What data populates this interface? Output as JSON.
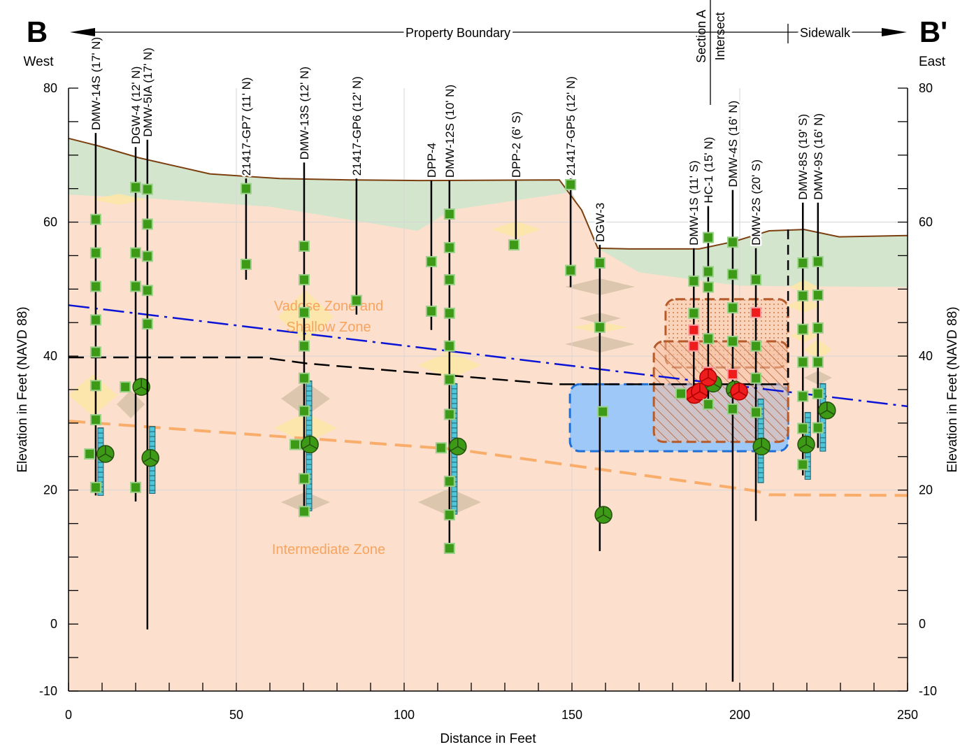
{
  "chart_data": {
    "type": "section",
    "header": {
      "left": "B",
      "right": "B'",
      "left_sub": "West",
      "right_sub": "East",
      "boundary": "Property Boundary",
      "section": [
        "Section A",
        "Intersect"
      ],
      "sidewalk": "Sidewalk"
    },
    "zones": [
      "Vadose Zone and",
      "Shallow Zone",
      "Intermediate Zone"
    ],
    "xlabel": "Distance in Feet",
    "ylabel": "Elevation in Feet (NAVD 88)",
    "y2label": "Elevation in Feet (NAVD 88)",
    "xlim": [
      0,
      250
    ],
    "ylim": [
      -10,
      80
    ],
    "xticks": [
      0,
      50,
      100,
      150,
      200,
      250
    ],
    "yticks": [
      -10,
      0,
      20,
      40,
      60,
      80
    ],
    "xminor": [
      0,
      10,
      20,
      30,
      40,
      50,
      60,
      70,
      80,
      90,
      100,
      110,
      120,
      130,
      140,
      150,
      160,
      170,
      180,
      190,
      200,
      210,
      220,
      230,
      240,
      250
    ],
    "yminor": [
      -10,
      -5,
      0,
      5,
      10,
      15,
      20,
      25,
      30,
      35,
      40,
      45,
      50,
      55,
      60,
      65,
      70,
      75,
      80
    ],
    "grid": true,
    "surfaces": {
      "ground": {
        "color": "#7b3f10",
        "x": [
          0,
          8.75,
          21,
          42.1,
          62.9,
          83.75,
          104.6,
          146.25,
          152.9,
          157.7,
          167.1,
          187.9,
          198.3,
          208.75,
          219.2,
          229.6,
          250
        ],
        "y": [
          72.5,
          71.4,
          69.6,
          67.2,
          66.5,
          66.3,
          66.2,
          66.3,
          61.8,
          56.1,
          56,
          56,
          57.1,
          58.7,
          58.9,
          57.8,
          58
        ]
      },
      "green_base": {
        "color": "#d3e5cc",
        "x": [
          0,
          25,
          60,
          104,
          114,
          150,
          158,
          170,
          200,
          250
        ],
        "y": [
          64.1,
          63.5,
          62.3,
          58.7,
          61.8,
          64.5,
          56,
          52.5,
          50.5,
          50.3
        ]
      },
      "water_table": {
        "color": "#0a14d6",
        "x": [
          0,
          250
        ],
        "y": [
          47.6,
          32.5
        ]
      },
      "black_dash": {
        "color": "#000000",
        "x": [
          0,
          57.7,
          71,
          145,
          214.4
        ],
        "y": [
          39.8,
          39.8,
          38.9,
          35.8,
          35.8
        ]
      },
      "orange_dash": {
        "color": "#f9ad6a",
        "x": [
          0,
          115,
          204.6,
          208.75,
          250
        ],
        "y": [
          30.3,
          26.1,
          19.9,
          19.3,
          19.2
        ]
      },
      "sidewalk_edge": {
        "color": "#000000",
        "x": [
          214.4,
          214.4
        ],
        "y": [
          58.9,
          35.8
        ]
      }
    },
    "areas": [
      {
        "color": "#9ec8f7",
        "stroke": "#1f6fd6",
        "x": [
          149.4,
          214.4
        ],
        "y": [
          35.8,
          25.8
        ]
      },
      {
        "color": "#f8c8ad",
        "stroke": "#b65a2a",
        "x": [
          177.9,
          214.4
        ],
        "y": [
          48.5,
          38.3
        ]
      },
      {
        "color": "#f5c0a3",
        "stroke": "#b65a2a",
        "x": [
          174.4,
          214.4
        ],
        "y": [
          42.2,
          27.2
        ]
      }
    ],
    "wells": [
      {
        "name": "DMW-14S (17' N)",
        "x": 8.1,
        "top": 73.3,
        "bottom": 19.2,
        "samples": [
          60.4,
          55.4,
          50.4,
          45.4,
          40.6,
          35.6,
          30.5,
          20.4
        ],
        "extra": [
          [
            6.3,
            25.4
          ]
        ],
        "screen": [
          29.3,
          19.2
        ],
        "circles": [
          [
            11,
            25.4
          ]
        ]
      },
      {
        "name": "DGW-4 (12' N)",
        "x": 20,
        "top": 71.2,
        "bottom": 18.3,
        "samples": [
          65.2,
          55.4,
          50.4,
          20.4
        ],
        "extra": [
          [
            16.9,
            35.4
          ]
        ],
        "circles": [
          [
            21.7,
            35.4
          ]
        ]
      },
      {
        "name": "DMW-5IA (17' N)",
        "x": 23.5,
        "top": 72.3,
        "bottom": -0.8,
        "samples": [
          64.9,
          59.7,
          54.9,
          49.8,
          44.8
        ],
        "screen": [
          29.5,
          19.5
        ],
        "circles": [
          [
            24.4,
            24.8
          ]
        ]
      },
      {
        "name": "21417-GP7 (11' N)",
        "x": 52.9,
        "top": 66.5,
        "bottom": 51.4,
        "samples": [
          65,
          53.7
        ]
      },
      {
        "name": "DMW-13S (12' N)",
        "x": 70.2,
        "top": 68.9,
        "bottom": 16.4,
        "samples": [
          56.4,
          51.4,
          46.5,
          41.5,
          36.7,
          31.8,
          26.8,
          21.7,
          16.8
        ],
        "extra": [
          [
            67.5,
            26.8
          ]
        ],
        "screen": [
          36.3,
          16.9
        ],
        "circles": [
          [
            71.9,
            26.8
          ]
        ]
      },
      {
        "name": "21417-GP6 (12' N)",
        "x": 85.8,
        "top": 66.5,
        "bottom": 46.2,
        "samples": [
          48.3
        ]
      },
      {
        "name": "DPP-4",
        "x": 108.1,
        "top": 66.2,
        "bottom": 43.9,
        "samples": [
          54.1,
          46.7
        ]
      },
      {
        "name": "DMW-12S (10' N)",
        "x": 113.5,
        "top": 66.2,
        "bottom": 10.7,
        "samples": [
          61.2,
          56.2,
          51.4,
          46.4,
          41.5,
          36.5,
          31.3,
          21.3,
          16.3,
          11.3
        ],
        "extra": [
          [
            111,
            26.3
          ]
        ],
        "screen": [
          35.9,
          16.4
        ],
        "circles": [
          [
            116,
            26.5
          ]
        ]
      },
      {
        "name": "DPP-2 (6' S)",
        "x": 133.3,
        "top": 66.2,
        "bottom": 56.6,
        "extra": [
          [
            132.7,
            56.6
          ]
        ]
      },
      {
        "name": "21417-GP5 (12' N)",
        "x": 149.6,
        "top": 66.5,
        "bottom": 50.3,
        "samples": [
          65.6,
          52.8
        ]
      },
      {
        "name": "DGW-3",
        "x": 158.3,
        "top": 56.6,
        "bottom": 10.9,
        "samples": [
          53.9,
          44.3
        ],
        "extra": [
          [
            159.2,
            31.7
          ]
        ],
        "circles": [
          [
            159.4,
            16.3
          ]
        ]
      },
      {
        "name": "DMW-1S (11' S)",
        "x": 186.3,
        "top": 56.1,
        "bottom": 34.7,
        "samples": [
          51.2,
          46.4
        ],
        "red": [
          43.9,
          41.5
        ],
        "red_circles": [
          [
            186.5,
            34.2
          ],
          [
            188.1,
            34.7
          ]
        ]
      },
      {
        "name": "HC-1 (15' N)",
        "x": 190.6,
        "top": 62.4,
        "bottom": 32.6,
        "samples": [
          57.7,
          52.6,
          50.3,
          42.6,
          32.8
        ],
        "extra": [
          [
            182.5,
            34.4
          ]
        ],
        "red": [
          37.6
        ],
        "red_circles": [
          [
            190.6,
            36.8
          ]
        ],
        "circles": [
          [
            192.1,
            35.9
          ]
        ]
      },
      {
        "name": "DMW-4S (16' N)",
        "x": 197.9,
        "top": 64.8,
        "bottom": -8.6,
        "samples": [
          57,
          52.2,
          47.2,
          42.2,
          32.1
        ],
        "red": [
          37.3
        ],
        "circles": [
          [
            198.5,
            35
          ]
        ],
        "red_circles": [
          [
            199.8,
            34.7
          ]
        ]
      },
      {
        "name": "DMW-2S (20' S)",
        "x": 204.8,
        "top": 56.1,
        "bottom": 15.4,
        "samples": [
          51.4,
          41.5,
          36.7,
          31.6
        ],
        "red": [
          46.5
        ],
        "screen": [
          33.6,
          21.1
        ],
        "circles": [
          [
            206.5,
            26.5
          ]
        ]
      },
      {
        "name": "DMW-8S (19' S)",
        "x": 218.8,
        "top": 62.9,
        "bottom": 22.2,
        "samples": [
          53.9,
          49,
          44,
          39.1,
          34,
          29.2,
          23.8
        ],
        "screen": [
          31.6,
          21.6
        ],
        "circles": [
          [
            219.8,
            26.8
          ]
        ]
      },
      {
        "name": "DMW-9S (16' N)",
        "x": 223.3,
        "top": 62.9,
        "bottom": 26.3,
        "samples": [
          54.1,
          49.1,
          44.2,
          39.1,
          34.4,
          29.3
        ],
        "screen": [
          35.9,
          25.8
        ],
        "circles": [
          [
            226,
            31.9
          ]
        ]
      }
    ]
  }
}
